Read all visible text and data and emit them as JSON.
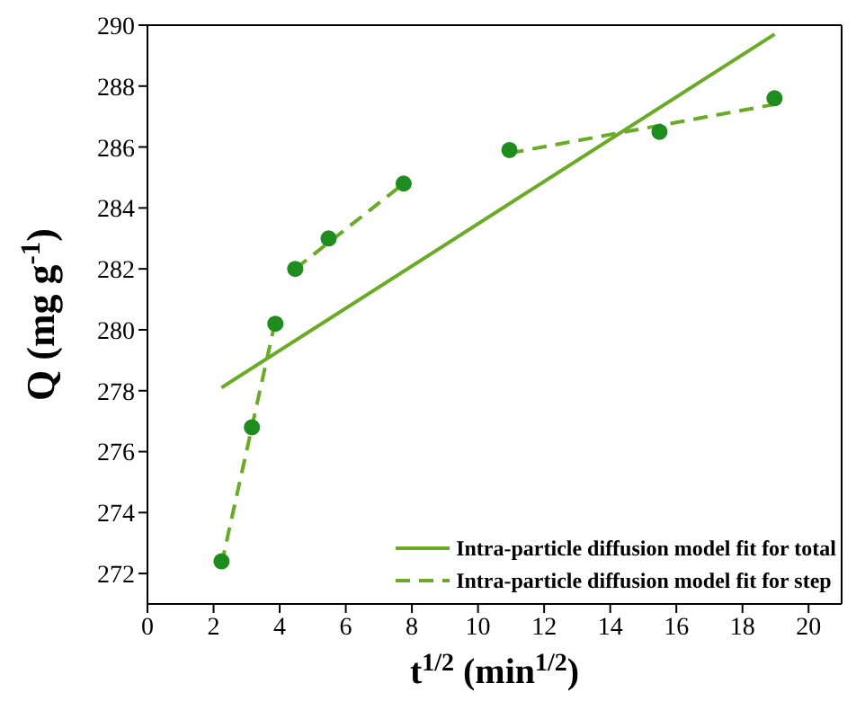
{
  "chart_data": {
    "type": "scatter",
    "xlabel": "t$^{1/2}$ (min$^{1/2}$)",
    "ylabel": "Q (mg g$^{-1}$)",
    "xlim": [
      0,
      21
    ],
    "xticks": [
      0,
      2,
      4,
      6,
      8,
      10,
      12,
      14,
      16,
      18,
      20
    ],
    "ylim": [
      271,
      290
    ],
    "yticks": [
      272,
      274,
      276,
      278,
      280,
      282,
      284,
      286,
      288,
      290
    ],
    "grid": false,
    "legend": "bottom right",
    "marker": "circle",
    "series": [
      {
        "type": "scatter",
        "color": "#1e8c1e",
        "x": [
          2.24,
          3.16,
          3.87,
          4.47,
          5.48,
          7.75,
          10.95,
          15.49,
          18.97
        ],
        "values": [
          272.4,
          276.8,
          280.2,
          282.0,
          283.0,
          284.8,
          285.9,
          286.5,
          287.6
        ]
      },
      {
        "type": "line",
        "name": "Intra-particle diffusion model fit for total",
        "color": "#6aab25",
        "line_style": "solid",
        "marker": "none",
        "x": [
          2.24,
          18.97
        ],
        "values": [
          278.1,
          289.7
        ]
      },
      {
        "type": "line",
        "name": "Intra-particle diffusion model fit for step",
        "color": "#6aab25",
        "line_style": "dashed",
        "marker": "none",
        "x": [
          2.24,
          3.87
        ],
        "values": [
          272.3,
          280.3
        ]
      },
      {
        "type": "line",
        "color": "#6aab25",
        "line_style": "dashed",
        "marker": "none",
        "x": [
          4.47,
          7.75
        ],
        "values": [
          282.0,
          284.8
        ]
      },
      {
        "type": "line",
        "color": "#6aab25",
        "line_style": "dashed",
        "marker": "none",
        "x": [
          10.95,
          18.97
        ],
        "values": [
          285.8,
          287.4
        ]
      }
    ]
  }
}
